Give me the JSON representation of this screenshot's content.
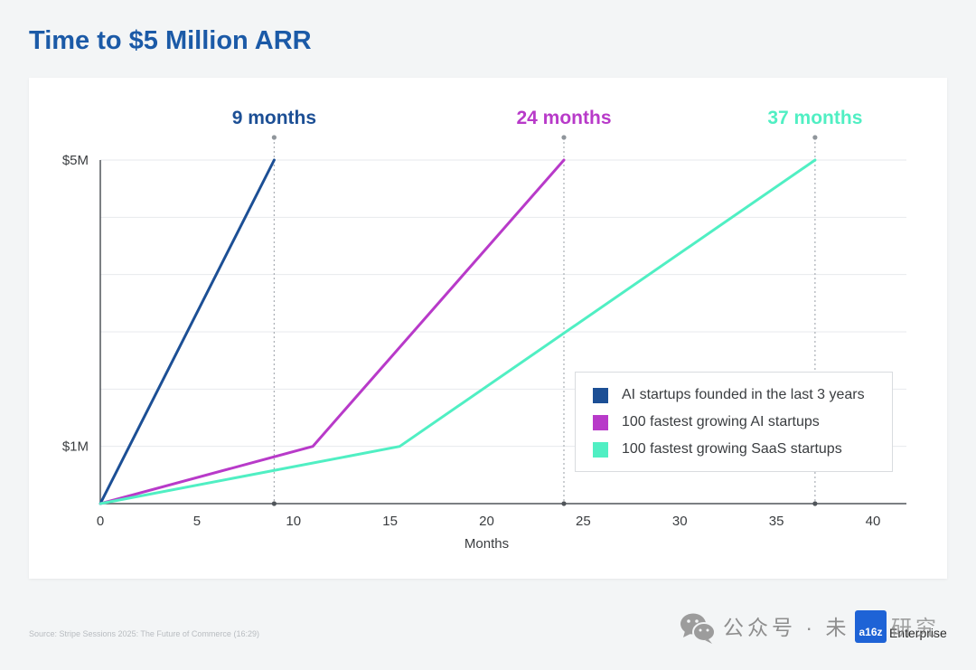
{
  "page": {
    "source": "Source: Stripe Sessions 2025: The Future of Commerce (16:29)"
  },
  "logo": {
    "mark": "a16z",
    "name": "Enterprise",
    "color": "#1e63d6"
  },
  "watermark": {
    "icon": "wechat-icon",
    "text_left": "公众号 · 未",
    "text_right": "研究"
  },
  "colors": {
    "background": "#f3f5f6",
    "title": "#1b5aa7",
    "text": "#3a3d40",
    "axis": "#50555a",
    "grid": "#e7eaed",
    "guide": "#a9afb5",
    "guide_dot": "#8f959b"
  },
  "chart_data": {
    "type": "line",
    "title": "Time to $5 Million ARR",
    "xlabel": "Months",
    "xlim": [
      0,
      40
    ],
    "ylim": [
      0,
      5
    ],
    "x_ticks": [
      0,
      5,
      10,
      15,
      20,
      25,
      30,
      35,
      40
    ],
    "y_ticks": [
      {
        "value": 1,
        "label": "$1M"
      },
      {
        "value": 5,
        "label": "$5M"
      }
    ],
    "grid": true,
    "legend_position": "lower right",
    "series": [
      {
        "name": "AI startups founded in the last 3 years",
        "color": "#1c4f95",
        "points": [
          [
            0,
            0
          ],
          [
            9,
            5
          ]
        ],
        "end_label": "9 months"
      },
      {
        "name": "100 fastest growing AI startups",
        "color": "#b83ac9",
        "points": [
          [
            0,
            0
          ],
          [
            11,
            1
          ],
          [
            24,
            5
          ]
        ],
        "end_label": "24 months"
      },
      {
        "name": "100 fastest growing SaaS startups",
        "color": "#50efc3",
        "points": [
          [
            0,
            0
          ],
          [
            15.5,
            1
          ],
          [
            37,
            5
          ]
        ],
        "end_label": "37 months"
      }
    ]
  }
}
